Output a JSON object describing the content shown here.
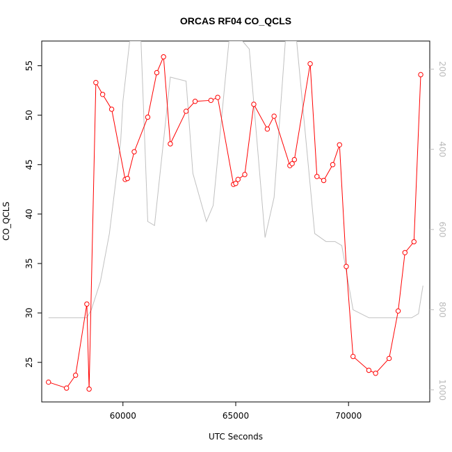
{
  "chart_data": {
    "type": "line",
    "title": "ORCAS RF04 CO_QCLS",
    "xlabel": "UTC Seconds",
    "ylabel": "CO_QCLS",
    "xlim": [
      56400,
      73600
    ],
    "ylim": [
      21,
      57.5
    ],
    "x_ticks": [
      60000,
      65000,
      70000
    ],
    "y_ticks": [
      25,
      30,
      35,
      40,
      45,
      50,
      55
    ],
    "right_axis": {
      "ylabel": "",
      "ylim": [
        1030,
        130
      ],
      "ticks": [
        200,
        400,
        600,
        800,
        1000
      ]
    },
    "series": [
      {
        "color": "#ff0000",
        "marker": "circle",
        "points": [
          [
            56700,
            23.0
          ],
          [
            57500,
            22.4
          ],
          [
            57900,
            23.7
          ],
          [
            58400,
            30.9
          ],
          [
            58500,
            22.3
          ],
          [
            58800,
            53.3
          ],
          [
            59100,
            52.1
          ],
          [
            59500,
            50.6
          ],
          [
            60100,
            43.5
          ],
          [
            60200,
            43.6
          ],
          [
            60500,
            46.3
          ],
          [
            61100,
            49.8
          ],
          [
            61500,
            54.3
          ],
          [
            61800,
            55.9
          ],
          [
            62100,
            47.1
          ],
          [
            62800,
            50.4
          ],
          [
            63200,
            51.4
          ],
          [
            63900,
            51.5
          ],
          [
            64200,
            51.8
          ],
          [
            64900,
            43.0
          ],
          [
            65000,
            43.1
          ],
          [
            65100,
            43.5
          ],
          [
            65400,
            44.0
          ],
          [
            65800,
            51.1
          ],
          [
            66400,
            48.6
          ],
          [
            66700,
            49.9
          ],
          [
            67400,
            44.9
          ],
          [
            67500,
            45.1
          ],
          [
            67600,
            45.5
          ],
          [
            68300,
            55.2
          ],
          [
            68600,
            43.8
          ],
          [
            68900,
            43.4
          ],
          [
            69300,
            45.0
          ],
          [
            69600,
            47.0
          ],
          [
            69900,
            34.7
          ],
          [
            70200,
            25.6
          ],
          [
            70900,
            24.2
          ],
          [
            71200,
            23.9
          ],
          [
            71800,
            25.4
          ],
          [
            72200,
            30.2
          ],
          [
            72500,
            36.1
          ],
          [
            72900,
            37.2
          ],
          [
            73200,
            54.1
          ]
        ]
      },
      {
        "color": "#c0c0c0",
        "axis": "right",
        "points": [
          [
            56700,
            820
          ],
          [
            58400,
            820
          ],
          [
            58600,
            800
          ],
          [
            59000,
            730
          ],
          [
            59400,
            610
          ],
          [
            59900,
            380
          ],
          [
            60000,
            280
          ],
          [
            60300,
            130
          ],
          [
            60800,
            130
          ],
          [
            61100,
            580
          ],
          [
            61400,
            590
          ],
          [
            62100,
            220
          ],
          [
            62800,
            230
          ],
          [
            63100,
            460
          ],
          [
            63700,
            580
          ],
          [
            64000,
            540
          ],
          [
            64700,
            130
          ],
          [
            65300,
            130
          ],
          [
            65600,
            150
          ],
          [
            66300,
            620
          ],
          [
            66700,
            520
          ],
          [
            67200,
            130
          ],
          [
            67700,
            130
          ],
          [
            68500,
            610
          ],
          [
            69000,
            630
          ],
          [
            69400,
            630
          ],
          [
            69700,
            640
          ],
          [
            70200,
            800
          ],
          [
            70900,
            820
          ],
          [
            72800,
            820
          ],
          [
            73100,
            810
          ],
          [
            73300,
            740
          ]
        ]
      }
    ]
  }
}
